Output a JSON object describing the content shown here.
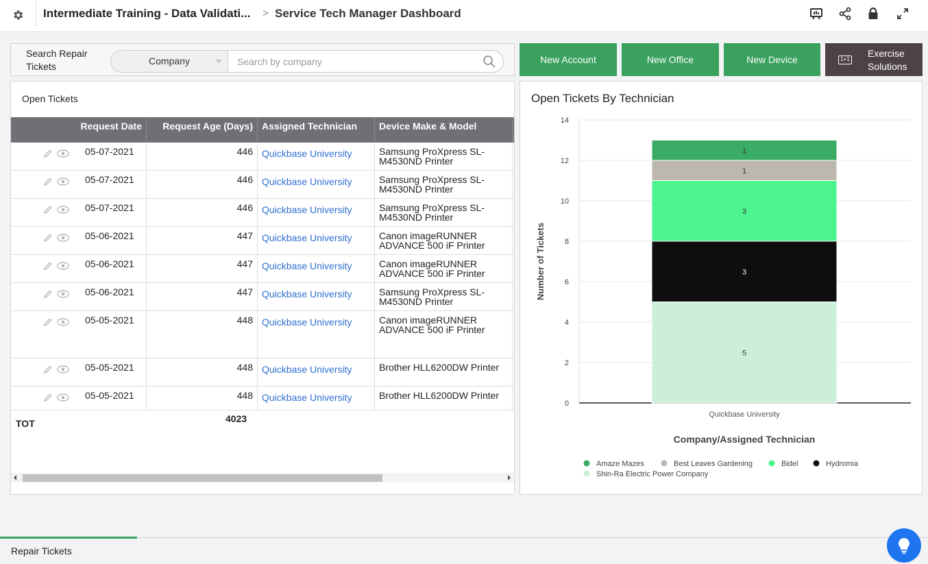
{
  "header": {
    "app_title": "Intermediate Training - Data Validati...",
    "separator": ">",
    "page_title": "Service Tech Manager Dashboard",
    "icons": [
      "settings-gear-icon",
      "presentation-icon",
      "share-icon",
      "lock-icon",
      "expand-icon"
    ]
  },
  "search": {
    "label": "Search Repair Tickets",
    "field_selected": "Company",
    "placeholder": "Search by company",
    "value": ""
  },
  "buttons": {
    "new_account": "New Account",
    "new_office": "New Office",
    "new_device": "New Device",
    "exercise_solutions": "Exercise Solutions"
  },
  "table": {
    "title": "Open Tickets",
    "columns": [
      "Request Date",
      "Request Age (Days)",
      "Assigned Technician",
      "Device Make & Model"
    ],
    "rows": [
      {
        "date": "05-07-2021",
        "age": "446",
        "tech": "Quickbase University",
        "device": "Samsung ProXpress SL-M4530ND  Printer"
      },
      {
        "date": "05-07-2021",
        "age": "446",
        "tech": "Quickbase University",
        "device": "Samsung ProXpress SL-M4530ND  Printer"
      },
      {
        "date": "05-07-2021",
        "age": "446",
        "tech": "Quickbase University",
        "device": "Samsung ProXpress SL-M4530ND  Printer"
      },
      {
        "date": "05-06-2021",
        "age": "447",
        "tech": "Quickbase University",
        "device": "Canon imageRUNNER ADVANCE 500 iF Printer"
      },
      {
        "date": "05-06-2021",
        "age": "447",
        "tech": "Quickbase University",
        "device": "Canon imageRUNNER ADVANCE 500 iF Printer"
      },
      {
        "date": "05-06-2021",
        "age": "447",
        "tech": "Quickbase University",
        "device": "Samsung ProXpress SL-M4530ND  Printer"
      },
      {
        "date": "05-05-2021",
        "age": "448",
        "tech": "Quickbase University",
        "device": "Canon imageRUNNER ADVANCE 500 iF Printer"
      },
      {
        "date": "05-05-2021",
        "age": "448",
        "tech": "Quickbase University",
        "device": "Brother HLL6200DW Printer"
      },
      {
        "date": "05-05-2021",
        "age": "448",
        "tech": "Quickbase University",
        "device": "Brother HLL6200DW Printer"
      }
    ],
    "total_label": "TOT",
    "total_value": "4023"
  },
  "chart_title": "Open Tickets By Technician",
  "chart_data": {
    "type": "bar",
    "stacked": true,
    "title": "Open Tickets By Technician",
    "xlabel": "Company/Assigned Technician",
    "ylabel": "Number of Tickets",
    "categories": [
      "Quickbase University"
    ],
    "ylim": [
      0,
      14
    ],
    "yticks": [
      0,
      2,
      4,
      6,
      8,
      10,
      12,
      14
    ],
    "grid": true,
    "legend_position": "bottom",
    "series": [
      {
        "name": "Shin-Ra Electric Power Company",
        "values": [
          5
        ],
        "color": "#ccefd9"
      },
      {
        "name": "Hydromia",
        "values": [
          3
        ],
        "color": "#0e0e0e"
      },
      {
        "name": "Bidel",
        "values": [
          3
        ],
        "color": "#4cf48f"
      },
      {
        "name": "Best Leaves Gardening",
        "values": [
          1
        ],
        "color": "#bdb8ae"
      },
      {
        "name": "Amaze Mazes",
        "values": [
          1
        ],
        "color": "#3aac66"
      }
    ],
    "legend_order": [
      "Amaze Mazes",
      "Best Leaves Gardening",
      "Bidel",
      "Hydromia",
      "Shin-Ra Electric Power Company"
    ]
  },
  "footer": {
    "tab_label": "Repair Tickets"
  },
  "colors": {
    "accent_green": "#3aa15e",
    "dark_button": "#4e4344",
    "link_blue": "#2f6fd1",
    "help_blue": "#1f75f0"
  }
}
